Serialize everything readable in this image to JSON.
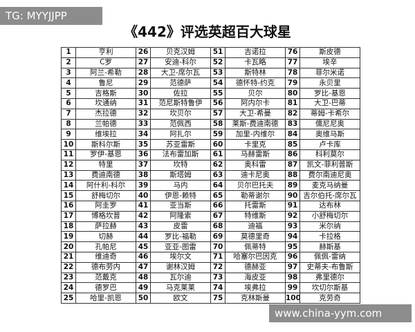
{
  "watermark_top": "TG: MYYJJPP",
  "watermark_bottom": "www.china-yym.com",
  "header": {
    "title": "《442》评选英超百大球星"
  },
  "table": {
    "rows": [
      [
        {
          "rank": 1,
          "name": "亨利"
        },
        {
          "rank": 26,
          "name": "贝克汉姆"
        },
        {
          "rank": 51,
          "name": "吉诺拉"
        },
        {
          "rank": 76,
          "name": "斯皮德"
        }
      ],
      [
        {
          "rank": 2,
          "name": "C罗"
        },
        {
          "rank": 27,
          "name": "安迪-科尔"
        },
        {
          "rank": 52,
          "name": "卡瓦略"
        },
        {
          "rank": 77,
          "name": "埃辛"
        }
      ],
      [
        {
          "rank": 3,
          "name": "阿兰-希勒"
        },
        {
          "rank": 28,
          "name": "大卫-席尔瓦"
        },
        {
          "rank": 53,
          "name": "斯特林"
        },
        {
          "rank": 78,
          "name": "菲尔米诺"
        }
      ],
      [
        {
          "rank": 4,
          "name": "鲁尼"
        },
        {
          "rank": 29,
          "name": "范德萨"
        },
        {
          "rank": 54,
          "name": "德怀特-约克"
        },
        {
          "rank": 79,
          "name": "永贝里"
        }
      ],
      [
        {
          "rank": 5,
          "name": "吉格斯"
        },
        {
          "rank": 30,
          "name": "佐拉"
        },
        {
          "rank": 55,
          "name": "贝尔"
        },
        {
          "rank": 80,
          "name": "罗比-基恩"
        }
      ],
      [
        {
          "rank": 6,
          "name": "坎通纳"
        },
        {
          "rank": 31,
          "name": "范尼斯特鲁伊"
        },
        {
          "rank": 56,
          "name": "阿内尔卡"
        },
        {
          "rank": 81,
          "name": "大卫-巴蒂"
        }
      ],
      [
        {
          "rank": 7,
          "name": "杰拉德"
        },
        {
          "rank": 32,
          "name": "坎贝尔"
        },
        {
          "rank": 57,
          "name": "大卫-希曼"
        },
        {
          "rank": 82,
          "name": "蒂姆-卡希尔"
        }
      ],
      [
        {
          "rank": 8,
          "name": "兰帕德"
        },
        {
          "rank": 33,
          "name": "范佩西"
        },
        {
          "rank": 58,
          "name": "莱斯-费迪南德"
        },
        {
          "rank": 83,
          "name": "儒尼尼奥"
        }
      ],
      [
        {
          "rank": 9,
          "name": "维埃拉"
        },
        {
          "rank": 34,
          "name": "阿扎尔"
        },
        {
          "rank": 59,
          "name": "加里-内维尔"
        },
        {
          "rank": 84,
          "name": "奥维马斯"
        }
      ],
      [
        {
          "rank": 10,
          "name": "斯科尔斯"
        },
        {
          "rank": 35,
          "name": "苏亚雷斯"
        },
        {
          "rank": 60,
          "name": "卡里克"
        },
        {
          "rank": 85,
          "name": "卢卡库"
        }
      ],
      [
        {
          "rank": 11,
          "name": "罗伊-基恩"
        },
        {
          "rank": 36,
          "name": "法布雷加斯"
        },
        {
          "rank": 61,
          "name": "马赫雷斯"
        },
        {
          "rank": 86,
          "name": "科利莫尔"
        }
      ],
      [
        {
          "rank": 12,
          "name": "特里"
        },
        {
          "rank": 37,
          "name": "坎特"
        },
        {
          "rank": 62,
          "name": "奥科雷"
        },
        {
          "rank": 87,
          "name": "凯文-菲利普斯"
        }
      ],
      [
        {
          "rank": 13,
          "name": "费迪南德"
        },
        {
          "rank": 38,
          "name": "斯塔姆"
        },
        {
          "rank": 63,
          "name": "迪卡尼奥"
        },
        {
          "rank": 88,
          "name": "费尔南迪尼奥"
        }
      ],
      [
        {
          "rank": 14,
          "name": "阿什利-科尔"
        },
        {
          "rank": 39,
          "name": "马内"
        },
        {
          "rank": 64,
          "name": "贝尔巴托夫"
        },
        {
          "rank": 89,
          "name": "麦克马纳曼"
        }
      ],
      [
        {
          "rank": 15,
          "name": "舒梅切尔"
        },
        {
          "rank": 40,
          "name": "伊恩-赖特"
        },
        {
          "rank": 65,
          "name": "勒蒂谢尔"
        },
        {
          "rank": 90,
          "name": "吉尔伯托-席尔瓦"
        }
      ],
      [
        {
          "rank": 16,
          "name": "阿圭罗"
        },
        {
          "rank": 41,
          "name": "亚当斯"
        },
        {
          "rank": 66,
          "name": "托雷斯"
        },
        {
          "rank": 91,
          "name": "达布林"
        }
      ],
      [
        {
          "rank": 17,
          "name": "博格坎普"
        },
        {
          "rank": 42,
          "name": "阿隆索"
        },
        {
          "rank": 67,
          "name": "特维斯"
        },
        {
          "rank": 92,
          "name": "小舒梅切尔"
        }
      ],
      [
        {
          "rank": 18,
          "name": "萨拉赫"
        },
        {
          "rank": 43,
          "name": "皮雷"
        },
        {
          "rank": 68,
          "name": "迪福"
        },
        {
          "rank": 93,
          "name": "米尔纳"
        }
      ],
      [
        {
          "rank": 19,
          "name": "切赫"
        },
        {
          "rank": 44,
          "name": "罗比-福勒"
        },
        {
          "rank": 69,
          "name": "莫德里奇"
        },
        {
          "rank": 94,
          "name": "卡拉格"
        }
      ],
      [
        {
          "rank": 20,
          "name": "孔帕尼"
        },
        {
          "rank": 45,
          "name": "亚亚-图雷"
        },
        {
          "rank": 70,
          "name": "佩蒂特"
        },
        {
          "rank": 95,
          "name": "赫斯基"
        }
      ],
      [
        {
          "rank": 21,
          "name": "维迪奇"
        },
        {
          "rank": 46,
          "name": "埃尔文"
        },
        {
          "rank": 71,
          "name": "哈塞尔巴因克"
        },
        {
          "rank": 96,
          "name": "佩佩-雷纳"
        }
      ],
      [
        {
          "rank": 22,
          "name": "德布劳内"
        },
        {
          "rank": 47,
          "name": "谢林汉姆"
        },
        {
          "rank": 72,
          "name": "德赫亚"
        },
        {
          "rank": 97,
          "name": "史蒂夫-布鲁斯"
        }
      ],
      [
        {
          "rank": 23,
          "name": "范戴克"
        },
        {
          "rank": 48,
          "name": "瓦尔迪"
        },
        {
          "rank": 73,
          "name": "海皮亚"
        },
        {
          "rank": 98,
          "name": "弗里德尔"
        }
      ],
      [
        {
          "rank": 24,
          "name": "德罗巴"
        },
        {
          "rank": 49,
          "name": "马克莱莱"
        },
        {
          "rank": 74,
          "name": "埃弗拉"
        },
        {
          "rank": 99,
          "name": "坎切尔斯基"
        }
      ],
      [
        {
          "rank": 25,
          "name": "哈里-凯恩"
        },
        {
          "rank": 50,
          "name": "欧文"
        },
        {
          "rank": 75,
          "name": "克林斯曼"
        },
        {
          "rank": 100,
          "name": "克劳奇"
        }
      ]
    ]
  }
}
